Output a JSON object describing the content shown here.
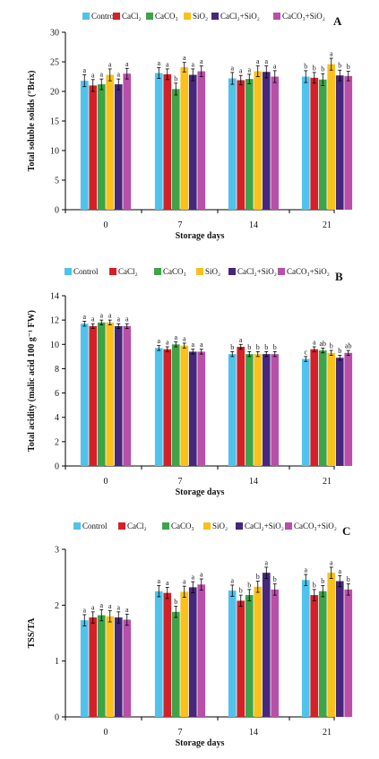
{
  "colors": [
    "#4fc3ec",
    "#d42027",
    "#3ea448",
    "#f9c11a",
    "#46277a",
    "#b94fa8"
  ],
  "chart_data": [
    {
      "type": "bar",
      "panel": "A",
      "categories": [
        "0",
        "7",
        "14",
        "21"
      ],
      "xlabel": "Storage days",
      "ylabel": "Total soluble solids (°Brix)",
      "ylim": [
        0,
        30
      ],
      "yticks": [
        "0",
        "5",
        "10",
        "15",
        "20",
        "25",
        "30"
      ],
      "series": [
        {
          "name": "Control",
          "values": [
            21.8,
            23.1,
            22.2,
            22.5
          ],
          "errors": [
            1.0,
            0.9,
            1.0,
            1.0
          ],
          "letters": [
            "a",
            "a",
            "a",
            "b"
          ]
        },
        {
          "name": "CaCl₂",
          "values": [
            21.0,
            22.9,
            21.9,
            22.3
          ],
          "errors": [
            1.0,
            0.9,
            0.8,
            0.9
          ],
          "letters": [
            "a",
            "a",
            "a",
            "b"
          ]
        },
        {
          "name": "CaCO₃",
          "values": [
            21.2,
            20.4,
            22.1,
            22.0
          ],
          "errors": [
            0.9,
            1.0,
            0.8,
            1.0
          ],
          "letters": [
            "a",
            "b",
            "a",
            "b"
          ]
        },
        {
          "name": "SiO₂",
          "values": [
            22.8,
            24.1,
            23.4,
            24.6
          ],
          "errors": [
            1.0,
            0.8,
            0.9,
            1.0
          ],
          "letters": [
            "a",
            "a",
            "a",
            "a"
          ]
        },
        {
          "name": "CaCl₂+SiO₂",
          "values": [
            21.2,
            22.8,
            23.3,
            22.7
          ],
          "errors": [
            0.9,
            1.0,
            1.0,
            0.9
          ],
          "letters": [
            "a",
            "a",
            "a",
            "b"
          ]
        },
        {
          "name": "CaCO₃+SiO₂",
          "values": [
            23.0,
            23.4,
            22.5,
            22.6
          ],
          "errors": [
            0.9,
            0.9,
            1.0,
            0.8
          ],
          "letters": [
            "a",
            "a",
            "a",
            "b"
          ]
        }
      ]
    },
    {
      "type": "bar",
      "panel": "B",
      "categories": [
        "0",
        "7",
        "14",
        "21"
      ],
      "xlabel": "Storage days",
      "ylabel": "Total acidity (malic acid 100 g⁻¹ FW)",
      "ylim": [
        0,
        14
      ],
      "yticks": [
        "0",
        "2",
        "4",
        "6",
        "8",
        "10",
        "12",
        "14"
      ],
      "series": [
        {
          "name": "Control",
          "values": [
            11.7,
            9.7,
            9.2,
            8.8
          ],
          "errors": [
            0.2,
            0.2,
            0.2,
            0.2
          ],
          "letters": [
            "a",
            "a",
            "b",
            "c"
          ]
        },
        {
          "name": "CaCl₂",
          "values": [
            11.5,
            9.6,
            9.8,
            9.6
          ],
          "errors": [
            0.2,
            0.2,
            0.2,
            0.2
          ],
          "letters": [
            "a",
            "a",
            "a",
            "a"
          ]
        },
        {
          "name": "CaCO₃",
          "values": [
            11.8,
            10.0,
            9.2,
            9.5
          ],
          "errors": [
            0.2,
            0.2,
            0.2,
            0.2
          ],
          "letters": [
            "a",
            "a",
            "b",
            "ab"
          ]
        },
        {
          "name": "SiO₂",
          "values": [
            11.8,
            9.9,
            9.2,
            9.3
          ],
          "errors": [
            0.2,
            0.2,
            0.2,
            0.2
          ],
          "letters": [
            "a",
            "a",
            "b",
            "b"
          ]
        },
        {
          "name": "CaCl₂+SiO₂",
          "values": [
            11.5,
            9.4,
            9.2,
            8.9
          ],
          "errors": [
            0.2,
            0.2,
            0.2,
            0.2
          ],
          "letters": [
            "a",
            "a",
            "b",
            "b"
          ]
        },
        {
          "name": "CaCO₃+SiO₂",
          "values": [
            11.5,
            9.4,
            9.2,
            9.3
          ],
          "errors": [
            0.2,
            0.2,
            0.2,
            0.2
          ],
          "letters": [
            "a",
            "a",
            "b",
            "ab"
          ]
        }
      ]
    },
    {
      "type": "bar",
      "panel": "C",
      "categories": [
        "0",
        "7",
        "14",
        "21"
      ],
      "xlabel": "Storage days",
      "ylabel": "TSS/TA",
      "ylim": [
        0,
        3
      ],
      "yticks": [
        "0",
        "1",
        "2",
        "3"
      ],
      "series": [
        {
          "name": "Control",
          "values": [
            1.73,
            2.25,
            2.26,
            2.45
          ],
          "errors": [
            0.1,
            0.1,
            0.1,
            0.1
          ],
          "letters": [
            "a",
            "a",
            "a",
            "a"
          ]
        },
        {
          "name": "CaCl₂",
          "values": [
            1.78,
            2.22,
            2.08,
            2.18
          ],
          "errors": [
            0.1,
            0.1,
            0.1,
            0.1
          ],
          "letters": [
            "a",
            "a",
            "b",
            "b"
          ]
        },
        {
          "name": "CaCO₃",
          "values": [
            1.82,
            1.88,
            2.18,
            2.25
          ],
          "errors": [
            0.1,
            0.1,
            0.1,
            0.1
          ],
          "letters": [
            "a",
            "b",
            "b",
            "b"
          ]
        },
        {
          "name": "SiO₂",
          "values": [
            1.8,
            2.24,
            2.33,
            2.58
          ],
          "errors": [
            0.1,
            0.1,
            0.1,
            0.1
          ],
          "letters": [
            "a",
            "a",
            "b",
            "a"
          ]
        },
        {
          "name": "CaCl₂+SiO₂",
          "values": [
            1.78,
            2.32,
            2.58,
            2.43
          ],
          "errors": [
            0.1,
            0.1,
            0.1,
            0.1
          ],
          "letters": [
            "a",
            "a",
            "a",
            "a"
          ]
        },
        {
          "name": "CaCO₃+SiO₂",
          "values": [
            1.74,
            2.37,
            2.28,
            2.28
          ],
          "errors": [
            0.1,
            0.1,
            0.1,
            0.1
          ],
          "letters": [
            "a",
            "a",
            "b",
            "b"
          ]
        }
      ]
    }
  ]
}
